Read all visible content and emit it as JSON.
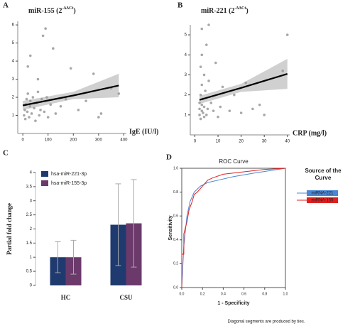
{
  "chart_data": [
    {
      "type": "scatter",
      "panel_label": "A",
      "title": "miR-155 (2",
      "title_superscript": "-ΔΔCt",
      "title_end": ")",
      "x_label": "IgE (IU/l)",
      "x": [
        5,
        8,
        10,
        12,
        15,
        18,
        20,
        25,
        28,
        30,
        35,
        40,
        45,
        50,
        55,
        60,
        65,
        70,
        75,
        80,
        85,
        90,
        95,
        100,
        110,
        120,
        130,
        150,
        170,
        190,
        220,
        250,
        280,
        300,
        310,
        350,
        380,
        30,
        20,
        60
      ],
      "values": [
        1.0,
        1.3,
        0.8,
        1.6,
        1.9,
        1.2,
        2.2,
        0.9,
        1.5,
        1.8,
        1.1,
        2.0,
        1.4,
        0.7,
        1.7,
        2.3,
        1.0,
        1.3,
        1.9,
        5.4,
        1.2,
        5.8,
        2.0,
        0.9,
        1.6,
        4.7,
        1.1,
        1.5,
        1.9,
        3.6,
        1.3,
        1.8,
        3.3,
        0.9,
        1.1,
        2.5,
        2.2,
        4.3,
        3.7,
        3.0
      ],
      "color": "#999999",
      "fit": {
        "x": [
          0,
          200,
          380
        ],
        "values": [
          1.55,
          2.1,
          2.65
        ],
        "lower": [
          1.3,
          1.9,
          2.0
        ],
        "upper": [
          1.8,
          2.3,
          3.3
        ],
        "color": "#000000",
        "band_color": "#d0d0d0"
      },
      "xlim": [
        -20,
        410
      ],
      "ylim": [
        0,
        6.2
      ],
      "xticks": [
        0,
        100,
        200,
        300,
        400
      ],
      "yticks": [
        1,
        2,
        3,
        4,
        5,
        6
      ]
    },
    {
      "type": "scatter",
      "panel_label": "B",
      "title": "miR-221 (2",
      "title_superscript": "-ΔΔCt",
      "title_end": ")",
      "x_label": "CRP (mg/l)",
      "x": [
        2,
        2,
        2,
        2.5,
        2.5,
        3,
        3,
        3,
        3,
        3.5,
        3.5,
        4,
        4,
        4,
        4.5,
        5,
        5,
        5.5,
        6,
        6,
        7,
        8,
        9,
        10,
        11,
        12,
        15,
        17,
        20,
        22,
        25,
        28,
        30,
        38,
        40,
        3,
        2.5
      ],
      "values": [
        1.0,
        1.3,
        1.6,
        0.8,
        2.0,
        1.2,
        1.5,
        2.5,
        5.3,
        1.1,
        1.8,
        0.9,
        1.4,
        3.0,
        2.2,
        1.0,
        4.5,
        1.3,
        2.7,
        5.5,
        1.6,
        1.2,
        3.6,
        0.9,
        1.4,
        2.4,
        1.2,
        2.0,
        1.1,
        2.6,
        1.3,
        1.5,
        1.0,
        3.2,
        5.0,
        4.0,
        3.4
      ],
      "color": "#999999",
      "fit": {
        "x": [
          2,
          20,
          40
        ],
        "values": [
          1.75,
          2.35,
          3.05
        ],
        "lower": [
          1.55,
          2.15,
          2.3
        ],
        "upper": [
          1.95,
          2.55,
          3.8
        ],
        "color": "#000000",
        "band_color": "#d0d0d0"
      },
      "xlim": [
        -2,
        41
      ],
      "ylim": [
        0,
        5.5
      ],
      "xticks": [
        0,
        10,
        20,
        30,
        40
      ],
      "yticks": [
        1,
        2,
        3,
        4,
        5
      ]
    },
    {
      "type": "bar",
      "panel_label": "C",
      "y_label": "Partial fold change",
      "categories": [
        "HC",
        "CSU"
      ],
      "series": [
        {
          "name": "hsa-miR-221-3p",
          "color": "#1f3a6e",
          "values": [
            1,
            2.15
          ],
          "errors": [
            0.55,
            1.45
          ]
        },
        {
          "name": "hsa-miR-155-3p",
          "color": "#6b3a6b",
          "values": [
            1,
            2.2
          ],
          "errors": [
            0.6,
            1.55
          ]
        }
      ],
      "ylim": [
        0,
        4
      ],
      "yticks": [
        0,
        0.5,
        1,
        1.5,
        2,
        2.5,
        3,
        3.5,
        4
      ]
    },
    {
      "type": "line",
      "panel_label": "D",
      "title": "ROC Curve",
      "x_label": "1 - Specificity",
      "y_label": "Sensitivity",
      "legend_title": "Source of the Curve",
      "note": "Diagonal segments are produced by ties.",
      "series": [
        {
          "name": "miRNA-221",
          "color": "#4a86d4",
          "x": [
            0,
            0.02,
            0.05,
            0.08,
            0.12,
            0.18,
            0.25,
            0.35,
            0.5,
            0.7,
            0.85,
            1
          ],
          "values": [
            0,
            0.35,
            0.6,
            0.72,
            0.8,
            0.85,
            0.88,
            0.9,
            0.93,
            0.96,
            0.98,
            1
          ]
        },
        {
          "name": "miRNA-155",
          "color": "#e02020",
          "x": [
            0,
            0,
            0.02,
            0.02,
            0.05,
            0.07,
            0.1,
            0.12,
            0.15,
            0.2,
            0.25,
            0.3,
            0.4,
            0.6,
            0.8,
            1
          ],
          "values": [
            0,
            0.28,
            0.28,
            0.45,
            0.55,
            0.65,
            0.72,
            0.78,
            0.8,
            0.85,
            0.9,
            0.92,
            0.95,
            0.97,
            0.99,
            1
          ]
        }
      ],
      "xlim": [
        0,
        1
      ],
      "ylim": [
        0,
        1
      ],
      "xticks": [
        {
          "value": 0,
          "label": "0.0"
        },
        0.2,
        0.4,
        0.6,
        0.8,
        {
          "value": 1,
          "label": "1.0"
        }
      ],
      "yticks": [
        {
          "value": 0,
          "label": "0.0"
        },
        0.2,
        0.4,
        0.6,
        0.8,
        {
          "value": 1,
          "label": "1.0"
        }
      ]
    }
  ]
}
